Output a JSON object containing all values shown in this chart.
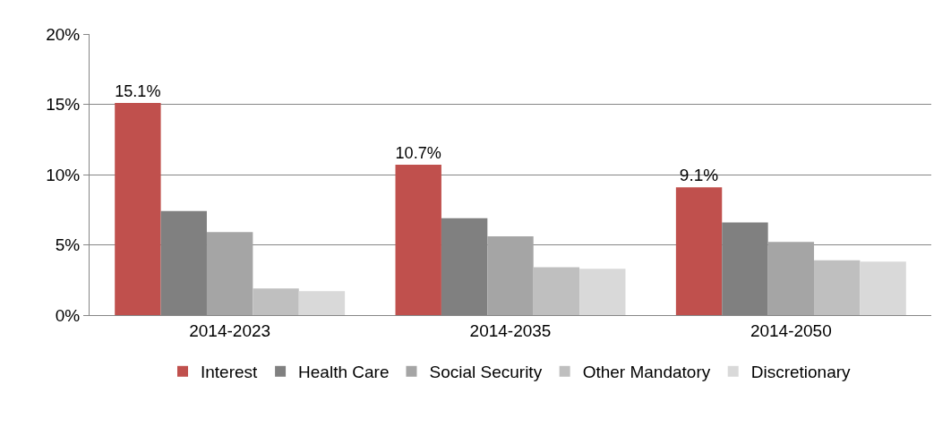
{
  "chart_data": {
    "type": "bar",
    "categories": [
      "2014-2023",
      "2014-2035",
      "2014-2050"
    ],
    "series": [
      {
        "name": "Interest",
        "color": "#c0504d",
        "values": [
          15.1,
          10.7,
          9.1
        ],
        "value_labels": [
          "15.1%",
          "10.7%",
          "9.1%"
        ]
      },
      {
        "name": "Health Care",
        "color": "#808080",
        "values": [
          7.4,
          6.9,
          6.6
        ]
      },
      {
        "name": "Social Security",
        "color": "#a5a5a5",
        "values": [
          5.9,
          5.6,
          5.2
        ]
      },
      {
        "name": "Other Mandatory",
        "color": "#bfbfbf",
        "values": [
          1.9,
          3.4,
          3.9
        ]
      },
      {
        "name": "Discretionary",
        "color": "#d9d9d9",
        "values": [
          1.7,
          3.3,
          3.8
        ]
      }
    ],
    "ylim": [
      0,
      20
    ],
    "yticks": [
      {
        "value": 0,
        "label": "0%"
      },
      {
        "value": 5,
        "label": "5%"
      },
      {
        "value": 10,
        "label": "10%"
      },
      {
        "value": 15,
        "label": "15%"
      },
      {
        "value": 20,
        "label": "20%"
      }
    ],
    "grid": "y",
    "legend": "bottom"
  }
}
